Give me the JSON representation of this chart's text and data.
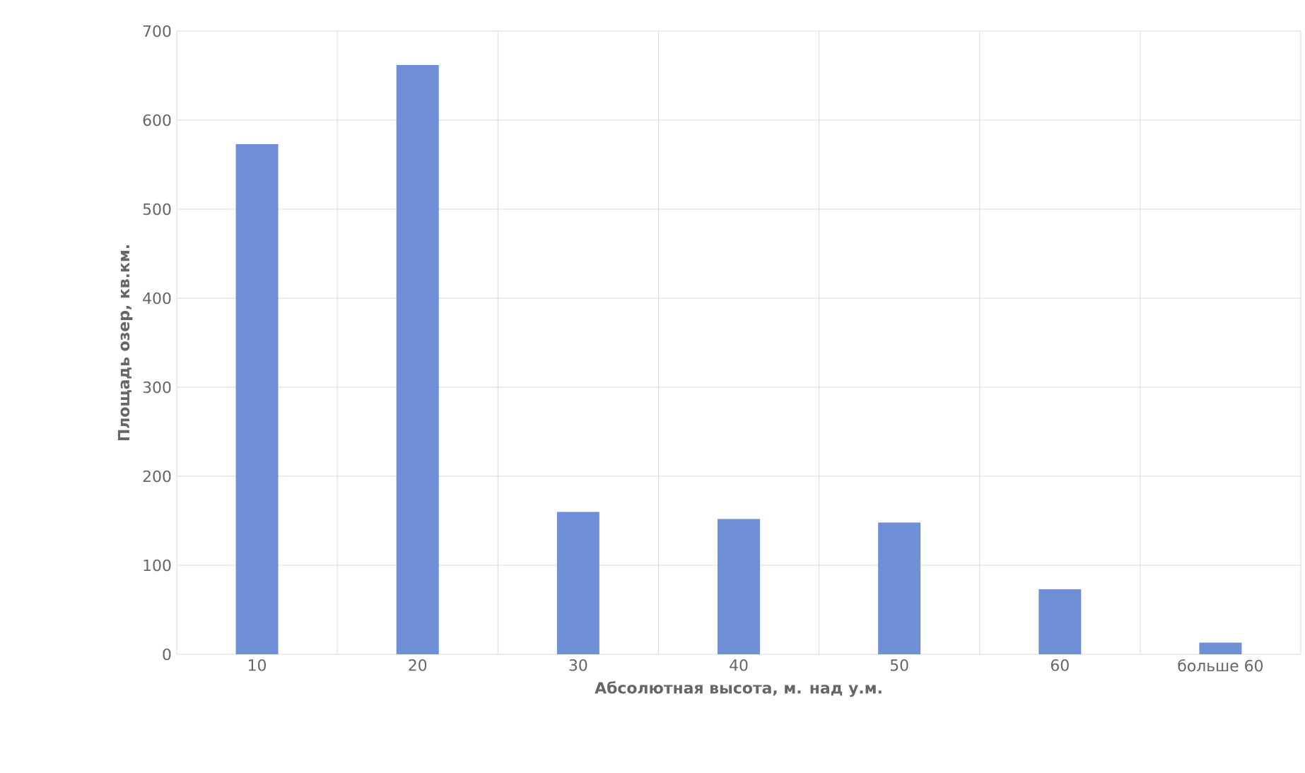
{
  "chart_data": {
    "type": "bar",
    "xlabel": "Абсолютная высота, м. над у.м.",
    "ylabel": "Площадь озер, кв.км.",
    "categories": [
      "10",
      "20",
      "30",
      "40",
      "50",
      "60",
      "больше 60"
    ],
    "values": [
      573,
      662,
      160,
      152,
      148,
      73,
      13
    ],
    "color": "#6f8fd6",
    "ylim": [
      0,
      700
    ],
    "yticks": [
      0,
      100,
      200,
      300,
      400,
      500,
      600,
      700
    ],
    "grid": true
  }
}
